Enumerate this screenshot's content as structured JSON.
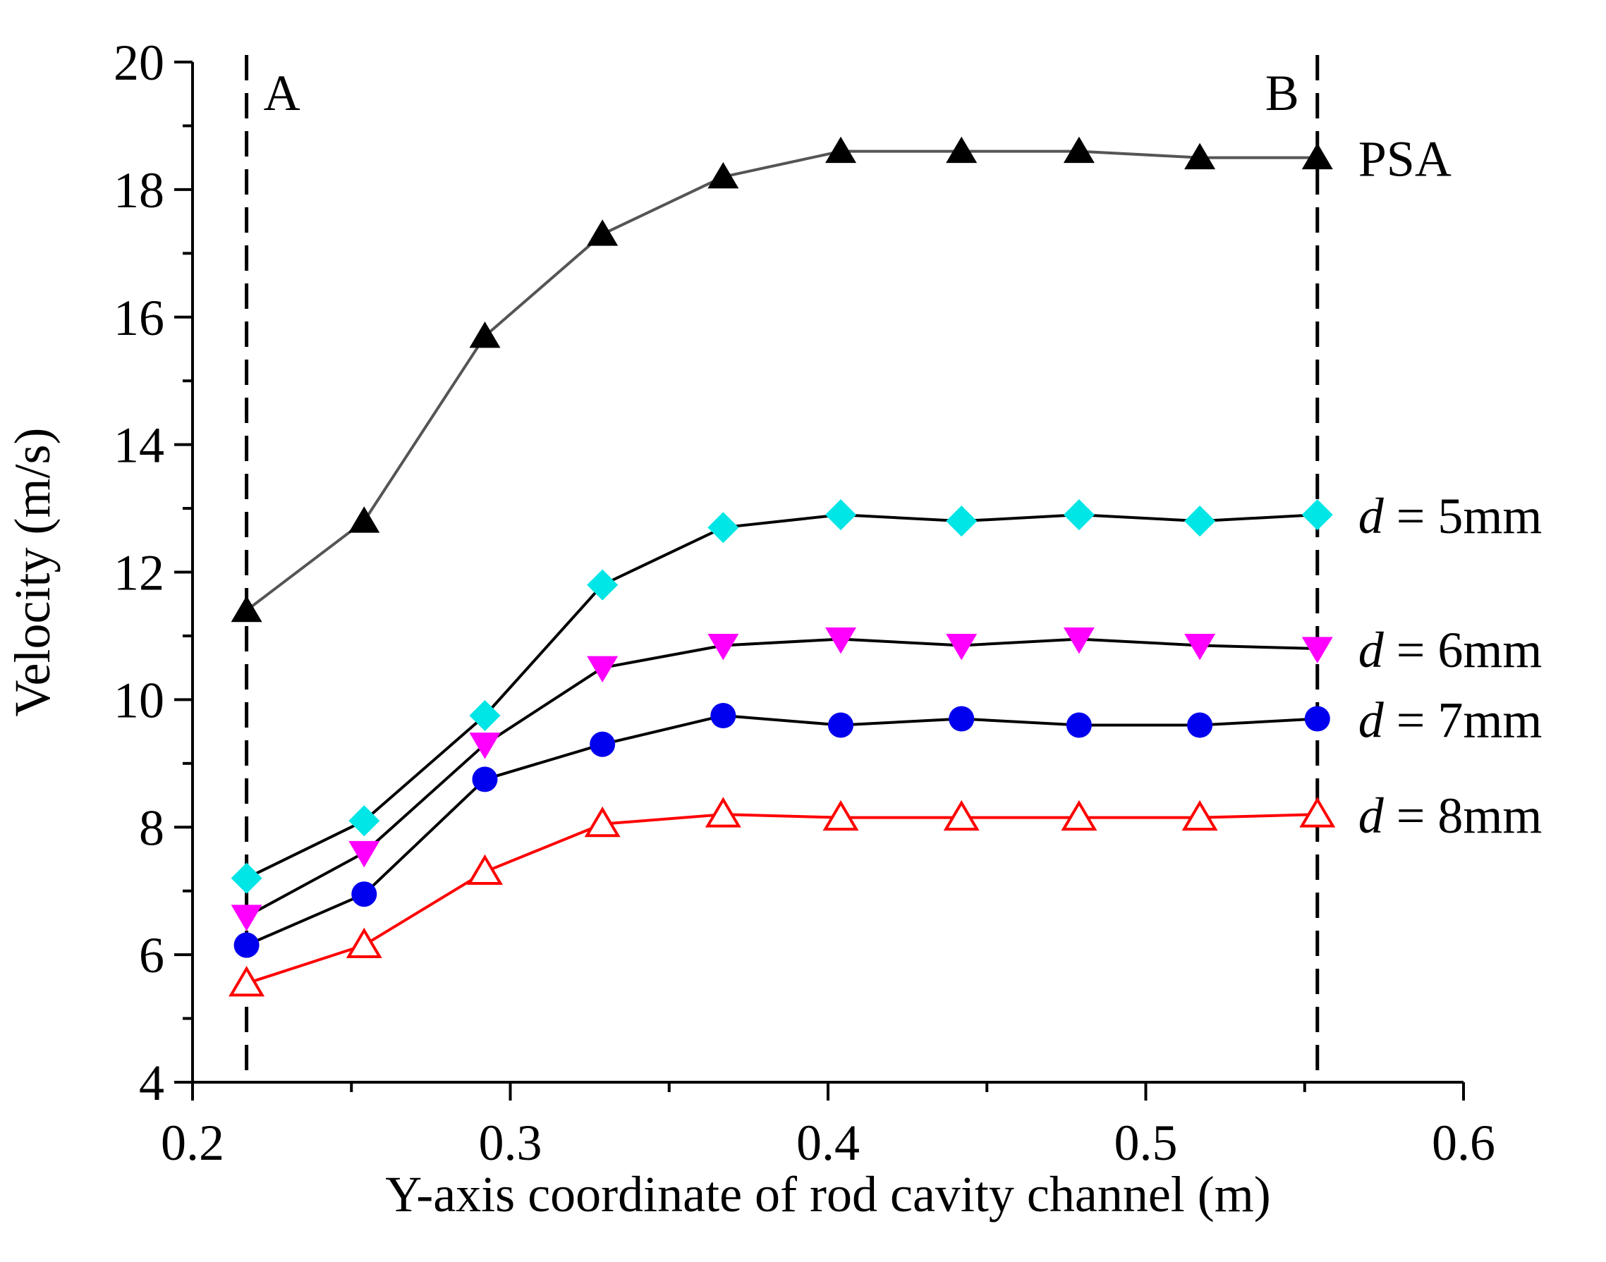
{
  "chart_data": {
    "type": "line",
    "title": "",
    "xlabel": "Y-axis coordinate of rod cavity channel (m)",
    "ylabel": "Velocity (m/s)",
    "xlim": [
      0.2,
      0.6
    ],
    "ylim": [
      4,
      20
    ],
    "x_ticks": [
      0.2,
      0.3,
      0.4,
      0.5,
      0.6
    ],
    "x_tick_labels": [
      "0.2",
      "0.3",
      "0.4",
      "0.5",
      "0.6"
    ],
    "y_ticks": [
      4,
      6,
      8,
      10,
      12,
      14,
      16,
      18,
      20
    ],
    "y_tick_labels": [
      "4",
      "6",
      "8",
      "10",
      "12",
      "14",
      "16",
      "18",
      "20"
    ],
    "x": [
      0.217,
      0.254,
      0.292,
      0.329,
      0.367,
      0.404,
      0.442,
      0.479,
      0.517,
      0.554
    ],
    "series": [
      {
        "name": "PSA",
        "label_parts": [
          "PSA"
        ],
        "marker": "triangle-up",
        "filled": true,
        "color": "#000000",
        "line_color": "#555555",
        "values": [
          11.4,
          12.8,
          15.7,
          17.3,
          18.2,
          18.6,
          18.6,
          18.6,
          18.5,
          18.5
        ]
      },
      {
        "name": "d = 5mm",
        "label_parts": [
          "d",
          " = 5mm"
        ],
        "marker": "diamond",
        "filled": true,
        "color": "#00e5e5",
        "line_color": "#000000",
        "values": [
          7.2,
          8.1,
          9.75,
          11.8,
          12.7,
          12.9,
          12.8,
          12.9,
          12.8,
          12.9
        ]
      },
      {
        "name": "d = 6mm",
        "label_parts": [
          "d",
          " = 6mm"
        ],
        "marker": "triangle-down",
        "filled": true,
        "color": "#ff00ff",
        "line_color": "#000000",
        "values": [
          6.6,
          7.6,
          9.3,
          10.5,
          10.85,
          10.95,
          10.85,
          10.95,
          10.85,
          10.8
        ]
      },
      {
        "name": "d = 7mm",
        "label_parts": [
          "d",
          " = 7mm"
        ],
        "marker": "circle",
        "filled": true,
        "color": "#0000ee",
        "line_color": "#000000",
        "values": [
          6.15,
          6.95,
          8.75,
          9.3,
          9.75,
          9.6,
          9.7,
          9.6,
          9.6,
          9.7
        ]
      },
      {
        "name": "d = 8mm",
        "label_parts": [
          "d",
          " = 8mm"
        ],
        "marker": "triangle-up",
        "filled": false,
        "color": "#ff0000",
        "line_color": "#ff0000",
        "values": [
          5.55,
          6.15,
          7.3,
          8.05,
          8.2,
          8.15,
          8.15,
          8.15,
          8.15,
          8.2
        ]
      }
    ],
    "reference_lines": [
      {
        "label": "A",
        "x": 0.217
      },
      {
        "label": "B",
        "x": 0.554
      }
    ],
    "grid": false,
    "legend": "inline-right"
  }
}
